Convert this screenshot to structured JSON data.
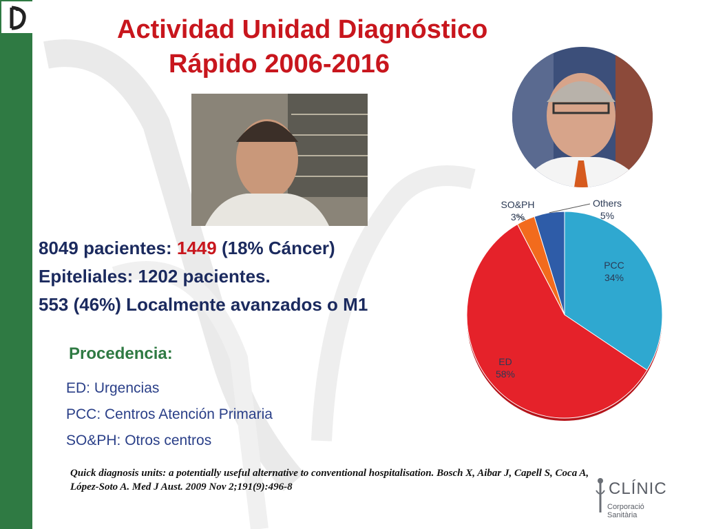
{
  "slide": {
    "title_line1": "Actividad Unidad Diagnóstico",
    "title_line2": "Rápido 2006-2016",
    "stats": {
      "line1_prefix": "8049 pacientes: ",
      "line1_highlight": "1449",
      "line1_suffix": " (18% Cáncer)",
      "line2": "Epiteliales: 1202 pacientes.",
      "line3": "553 (46%) Localmente avanzados o M1"
    },
    "procedencia": {
      "title": "Procedencia:",
      "items": [
        "ED: Urgencias",
        "PCC: Centros Atención Primaria",
        "SO&PH: Otros centros"
      ]
    },
    "reference": "Quick diagnosis units: a potentially useful alternative to conventional hospitalisation. Bosch X, Aibar J, Capell S, Coca A, López-Soto A. Med J Aust. 2009 Nov 2;191(9):496-8",
    "logo": {
      "name": "CLÍNIC",
      "sub": "Corporació Sanitària"
    },
    "colors": {
      "title": "#c8161d",
      "sidebar": "#2f7a43",
      "text_dark": "#1b2a5e",
      "list": "#2a3f88"
    }
  },
  "chart_data": {
    "type": "pie",
    "slices": [
      {
        "label": "PCC",
        "value": 34,
        "display": "34%",
        "color": "#2fa8d0"
      },
      {
        "label": "ED",
        "value": 58,
        "display": "58%",
        "color": "#e5222a"
      },
      {
        "label": "SO&PH",
        "value": 3,
        "display": "3%",
        "color": "#f26b1d"
      },
      {
        "label": "Others",
        "value": 5,
        "display": "5%",
        "color": "#2e5ca8"
      }
    ]
  }
}
